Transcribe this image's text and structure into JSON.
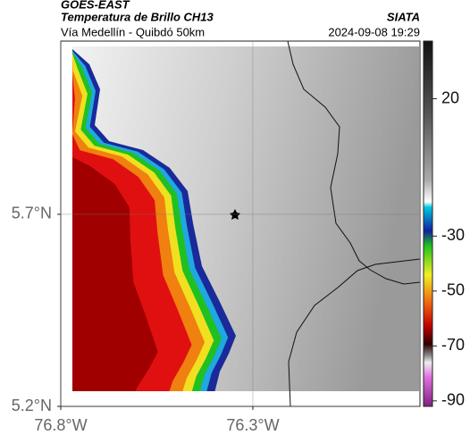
{
  "header": {
    "satellite": "GOES-EAST",
    "product": "Temperatura de Brillo CH13",
    "route": "Vía Medellín - Quibdó 50km",
    "organization": "SIATA",
    "datetime": "2024-09-08 19:29"
  },
  "map": {
    "lat_range": [
      5.2,
      6.151
    ],
    "lon_range": [
      -76.8,
      -75.865
    ],
    "lat_ticks": [
      {
        "value": 5.7,
        "label": "5.7°N"
      },
      {
        "value": 5.2,
        "label": "5.2°N"
      }
    ],
    "lon_ticks": [
      {
        "value": -76.8,
        "label": "76.8°W"
      },
      {
        "value": -76.3,
        "label": "76.3°W"
      }
    ]
  },
  "colorbar": {
    "range": [
      -92,
      41
    ],
    "ticks": [
      20,
      -30,
      -50,
      -70,
      -90
    ]
  }
}
